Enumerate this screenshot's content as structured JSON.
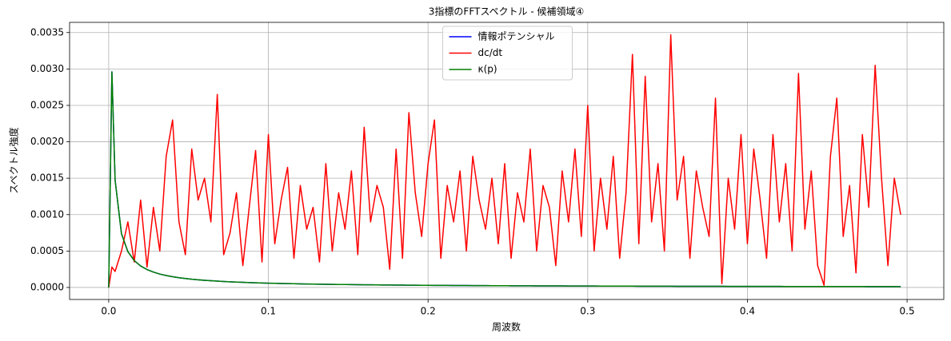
{
  "chart_data": {
    "type": "line",
    "title": "3指標のFFTスペクトル - 候補領域④",
    "xlabel": "周波数",
    "ylabel": "スペクトル強度",
    "xlim": [
      -0.0245,
      0.523
    ],
    "ylim": [
      -0.000165,
      0.00364
    ],
    "xticks": [
      {
        "value": 0,
        "label": "0.0"
      },
      0.1,
      0.2,
      0.3,
      0.4,
      0.5
    ],
    "yticks": [
      {
        "value": 0,
        "label": "0.0000"
      },
      {
        "value": 0.0005,
        "label": "0.0005"
      },
      {
        "value": 0.001,
        "label": "0.0010"
      },
      {
        "value": 0.0015,
        "label": "0.0015"
      },
      {
        "value": 0.002,
        "label": "0.0020"
      },
      {
        "value": 0.0025,
        "label": "0.0025"
      },
      {
        "value": 0.003,
        "label": "0.0030"
      },
      {
        "value": 0.0035,
        "label": "0.0035"
      }
    ],
    "grid": true,
    "legend": "upper center",
    "x": [
      0,
      0.002,
      0.004,
      0.008,
      0.012,
      0.016,
      0.02,
      0.024,
      0.028,
      0.032,
      0.036,
      0.04,
      0.044,
      0.048,
      0.052,
      0.056,
      0.06,
      0.064,
      0.068,
      0.072,
      0.076,
      0.08,
      0.084,
      0.088,
      0.092,
      0.096,
      0.1,
      0.104,
      0.108,
      0.112,
      0.116,
      0.12,
      0.124,
      0.128,
      0.132,
      0.136,
      0.14,
      0.144,
      0.148,
      0.152,
      0.156,
      0.16,
      0.164,
      0.168,
      0.172,
      0.176,
      0.18,
      0.184,
      0.188,
      0.192,
      0.196,
      0.2,
      0.204,
      0.208,
      0.212,
      0.216,
      0.22,
      0.224,
      0.228,
      0.232,
      0.236,
      0.24,
      0.244,
      0.248,
      0.252,
      0.256,
      0.26,
      0.264,
      0.268,
      0.272,
      0.276,
      0.28,
      0.284,
      0.288,
      0.292,
      0.296,
      0.3,
      0.304,
      0.308,
      0.312,
      0.316,
      0.32,
      0.324,
      0.328,
      0.332,
      0.336,
      0.34,
      0.344,
      0.348,
      0.352,
      0.356,
      0.36,
      0.364,
      0.368,
      0.372,
      0.376,
      0.38,
      0.384,
      0.388,
      0.392,
      0.396,
      0.4,
      0.404,
      0.408,
      0.412,
      0.416,
      0.42,
      0.424,
      0.428,
      0.432,
      0.436,
      0.44,
      0.444,
      0.448,
      0.452,
      0.456,
      0.46,
      0.464,
      0.468,
      0.472,
      0.476,
      0.48,
      0.484,
      0.488,
      0.492,
      0.496
    ],
    "series": [
      {
        "name": "情報ポテンシャル",
        "color": "#0000ff",
        "values": [
          0,
          0.00296,
          0.001475,
          0.000738,
          0.000492,
          0.000369,
          0.000295,
          0.000246,
          0.000211,
          0.000184,
          0.000164,
          0.000148,
          0.000134,
          0.000123,
          0.000113,
          0.000105,
          9.83e-05,
          9.22e-05,
          8.68e-05,
          8.19e-05,
          7.76e-05,
          7.38e-05,
          7.02e-05,
          6.7e-05,
          6.41e-05,
          6.15e-05,
          5.9e-05,
          5.67e-05,
          5.46e-05,
          5.27e-05,
          5.09e-05,
          4.92e-05,
          4.76e-05,
          4.61e-05,
          4.47e-05,
          4.34e-05,
          4.21e-05,
          4.1e-05,
          3.99e-05,
          3.88e-05,
          3.78e-05,
          3.69e-05,
          3.6e-05,
          3.51e-05,
          3.43e-05,
          3.35e-05,
          3.28e-05,
          3.21e-05,
          3.14e-05,
          3.07e-05,
          3.01e-05,
          2.95e-05,
          2.89e-05,
          2.84e-05,
          2.78e-05,
          2.73e-05,
          2.68e-05,
          2.63e-05,
          2.59e-05,
          2.54e-05,
          2.5e-05,
          2.46e-05,
          2.42e-05,
          2.38e-05,
          2.34e-05,
          2.3e-05,
          2.27e-05,
          2.23e-05,
          2.2e-05,
          2.17e-05,
          2.14e-05,
          2.11e-05,
          2.08e-05,
          2.05e-05,
          2.02e-05,
          1.99e-05,
          1.97e-05,
          1.94e-05,
          1.92e-05,
          1.89e-05,
          1.87e-05,
          1.84e-05,
          1.82e-05,
          1.8e-05,
          1.78e-05,
          1.76e-05,
          1.74e-05,
          1.72e-05,
          1.7e-05,
          1.68e-05,
          1.66e-05,
          1.64e-05,
          1.62e-05,
          1.6e-05,
          1.59e-05,
          1.57e-05,
          1.55e-05,
          1.54e-05,
          1.52e-05,
          1.51e-05,
          1.49e-05,
          1.48e-05,
          1.46e-05,
          1.45e-05,
          1.43e-05,
          1.42e-05,
          1.4e-05,
          1.39e-05,
          1.38e-05,
          1.37e-05,
          1.35e-05,
          1.34e-05,
          1.33e-05,
          1.32e-05,
          1.31e-05,
          1.29e-05,
          1.28e-05,
          1.27e-05,
          1.26e-05,
          1.25e-05,
          1.24e-05,
          1.23e-05,
          1.22e-05,
          1.21e-05,
          1.2e-05,
          1.19e-05
        ]
      },
      {
        "name": "dc/dt",
        "color": "#ff0000",
        "values": [
          0,
          0.00028,
          0.00022,
          0.0005,
          0.0009,
          0.00035,
          0.0012,
          0.00028,
          0.0011,
          0.0005,
          0.0018,
          0.0023,
          0.0009,
          0.00045,
          0.0019,
          0.0012,
          0.0015,
          0.0009,
          0.00265,
          0.00045,
          0.00075,
          0.0013,
          0.0003,
          0.0011,
          0.00188,
          0.00035,
          0.0021,
          0.0006,
          0.0012,
          0.00165,
          0.0004,
          0.0014,
          0.0008,
          0.0011,
          0.00035,
          0.0017,
          0.0005,
          0.0013,
          0.0008,
          0.0016,
          0.00045,
          0.0022,
          0.0009,
          0.0014,
          0.0011,
          0.00025,
          0.0019,
          0.0004,
          0.0024,
          0.0013,
          0.0007,
          0.0017,
          0.0023,
          0.0004,
          0.0014,
          0.0009,
          0.0016,
          0.0005,
          0.0018,
          0.0012,
          0.0008,
          0.0015,
          0.0006,
          0.0017,
          0.0004,
          0.0013,
          0.0009,
          0.0019,
          0.0005,
          0.0014,
          0.0011,
          0.0003,
          0.0016,
          0.0009,
          0.0019,
          0.0007,
          0.0025,
          0.0005,
          0.0015,
          0.0008,
          0.0018,
          0.0004,
          0.0013,
          0.0032,
          0.0006,
          0.0029,
          0.0009,
          0.0017,
          0.0005,
          0.00347,
          0.0012,
          0.0018,
          0.0004,
          0.0016,
          0.0011,
          0.0007,
          0.0026,
          5e-05,
          0.0015,
          0.0008,
          0.0021,
          0.0006,
          0.0019,
          0.0012,
          0.0004,
          0.0021,
          0.0009,
          0.0017,
          0.0005,
          0.00294,
          0.0008,
          0.0016,
          0.0003,
          3e-05,
          0.0018,
          0.0026,
          0.0007,
          0.0014,
          0.0002,
          0.0021,
          0.0011,
          0.00305,
          0.0015,
          0.0003,
          0.0015,
          0.001
        ]
      },
      {
        "name": "κ(p)",
        "color": "#008000",
        "values": [
          0,
          0.00296,
          0.001475,
          0.000738,
          0.000492,
          0.000369,
          0.000295,
          0.000246,
          0.000211,
          0.000184,
          0.000164,
          0.000148,
          0.000134,
          0.000123,
          0.000113,
          0.000105,
          9.83e-05,
          9.22e-05,
          8.68e-05,
          8.19e-05,
          7.76e-05,
          7.38e-05,
          7.02e-05,
          6.7e-05,
          6.41e-05,
          6.15e-05,
          5.9e-05,
          5.67e-05,
          5.46e-05,
          5.27e-05,
          5.09e-05,
          4.92e-05,
          4.76e-05,
          4.61e-05,
          4.47e-05,
          4.34e-05,
          4.21e-05,
          4.1e-05,
          3.99e-05,
          3.88e-05,
          3.78e-05,
          3.69e-05,
          3.6e-05,
          3.51e-05,
          3.43e-05,
          3.35e-05,
          3.28e-05,
          3.21e-05,
          3.14e-05,
          3.07e-05,
          3.01e-05,
          2.95e-05,
          2.89e-05,
          2.84e-05,
          2.78e-05,
          2.73e-05,
          2.68e-05,
          2.63e-05,
          2.59e-05,
          2.54e-05,
          2.5e-05,
          2.46e-05,
          2.42e-05,
          2.38e-05,
          2.34e-05,
          2.3e-05,
          2.27e-05,
          2.23e-05,
          2.2e-05,
          2.17e-05,
          2.14e-05,
          2.11e-05,
          2.08e-05,
          2.05e-05,
          2.02e-05,
          1.99e-05,
          1.97e-05,
          1.94e-05,
          1.92e-05,
          1.89e-05,
          1.87e-05,
          1.84e-05,
          1.82e-05,
          1.8e-05,
          1.78e-05,
          1.76e-05,
          1.74e-05,
          1.72e-05,
          1.7e-05,
          1.68e-05,
          1.66e-05,
          1.64e-05,
          1.62e-05,
          1.6e-05,
          1.59e-05,
          1.57e-05,
          1.55e-05,
          1.54e-05,
          1.52e-05,
          1.51e-05,
          1.49e-05,
          1.48e-05,
          1.46e-05,
          1.45e-05,
          1.43e-05,
          1.42e-05,
          1.4e-05,
          1.39e-05,
          1.38e-05,
          1.37e-05,
          1.35e-05,
          1.34e-05,
          1.33e-05,
          1.32e-05,
          1.31e-05,
          1.29e-05,
          1.28e-05,
          1.27e-05,
          1.26e-05,
          1.25e-05,
          1.24e-05,
          1.23e-05,
          1.22e-05,
          1.21e-05,
          1.2e-05,
          1.19e-05
        ]
      }
    ]
  }
}
